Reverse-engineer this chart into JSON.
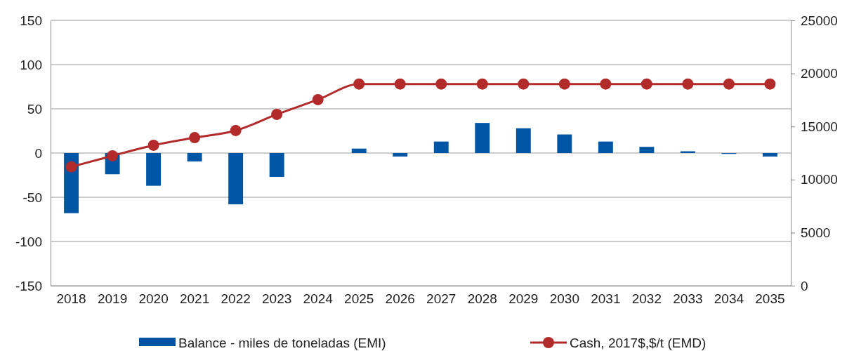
{
  "chart_data": {
    "type": "bar",
    "categories": [
      "2018",
      "2019",
      "2020",
      "2021",
      "2022",
      "2023",
      "2024",
      "2025",
      "2026",
      "2027",
      "2028",
      "2029",
      "2030",
      "2031",
      "2032",
      "2033",
      "2034",
      "2035"
    ],
    "series": [
      {
        "name": "Balance - miles de toneladas (EMI)",
        "color": "#0055a5",
        "values": [
          -68,
          -24,
          -37,
          -9.5,
          -58,
          -27,
          0,
          5,
          -4,
          13,
          34,
          28,
          21,
          13,
          7,
          2,
          -1,
          -4
        ]
      },
      {
        "name": "Cash, 2017$,$/t (EMD)",
        "type": "line",
        "axis": "y2",
        "color": "#b22a2a",
        "marker": "circle",
        "values": [
          11200,
          12240,
          13230,
          13950,
          14620,
          16140,
          17530,
          19000,
          19000,
          19000,
          19000,
          19000,
          19000,
          19000,
          19000,
          19000,
          19000,
          19000
        ]
      }
    ],
    "ylim": [
      -150,
      150
    ],
    "yticks": [
      -150,
      -100,
      -50,
      0,
      50,
      100,
      150
    ],
    "y2lim": [
      0,
      25000
    ],
    "y2ticks": [
      0,
      5000,
      10000,
      15000,
      20000,
      25000
    ],
    "grid": "y",
    "legend": "bottom"
  }
}
